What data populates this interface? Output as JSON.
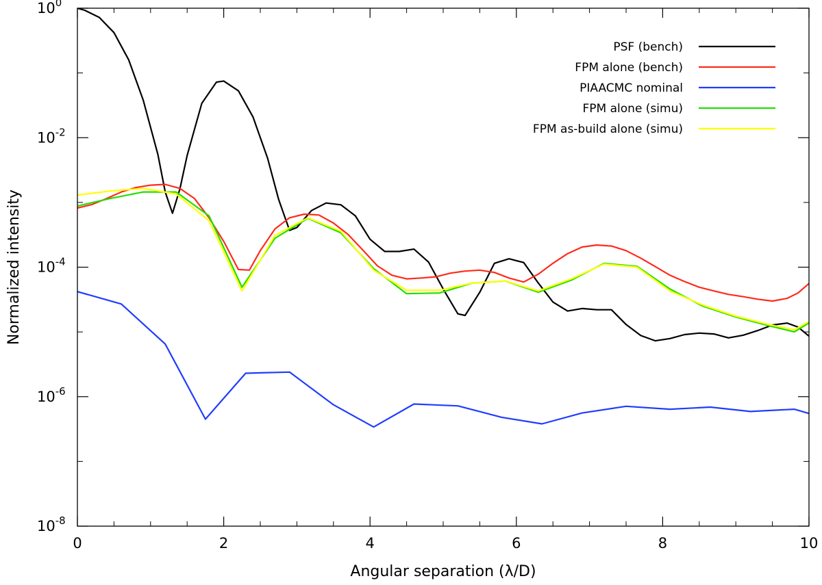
{
  "chart_data": {
    "type": "line",
    "xlabel": "Angular separation (λ/D)",
    "ylabel": "Normalized intensity",
    "xlim": [
      0,
      10
    ],
    "ylim": [
      1e-08,
      1
    ],
    "yscale": "log",
    "grid": false,
    "legend_position": "top-right",
    "x_ticks": [
      "0",
      "2",
      "4",
      "6",
      "8",
      "10"
    ],
    "y_ticks": [
      {
        "base": "10",
        "exp": "0",
        "value": 1
      },
      {
        "base": "10",
        "exp": "-2",
        "value": 0.01
      },
      {
        "base": "10",
        "exp": "-4",
        "value": 0.0001
      },
      {
        "base": "10",
        "exp": "-6",
        "value": 1e-06
      },
      {
        "base": "10",
        "exp": "-8",
        "value": 1e-08
      }
    ],
    "series": [
      {
        "name": "PSF (bench)",
        "color": "#000000",
        "points": [
          [
            0.0,
            1.0
          ],
          [
            0.1,
            0.93
          ],
          [
            0.3,
            0.72
          ],
          [
            0.5,
            0.42
          ],
          [
            0.7,
            0.16
          ],
          [
            0.9,
            0.038
          ],
          [
            1.1,
            0.0055
          ],
          [
            1.2,
            0.00145
          ],
          [
            1.3,
            0.00068
          ],
          [
            1.4,
            0.0016
          ],
          [
            1.5,
            0.0053
          ],
          [
            1.7,
            0.034
          ],
          [
            1.9,
            0.072
          ],
          [
            2.0,
            0.075
          ],
          [
            2.2,
            0.053
          ],
          [
            2.4,
            0.021
          ],
          [
            2.6,
            0.0048
          ],
          [
            2.75,
            0.00112
          ],
          [
            2.9,
            0.00037
          ],
          [
            3.0,
            0.00041
          ],
          [
            3.2,
            0.00075
          ],
          [
            3.4,
            0.00098
          ],
          [
            3.6,
            0.00092
          ],
          [
            3.8,
            0.00062
          ],
          [
            4.0,
            0.00027
          ],
          [
            4.2,
            0.000175
          ],
          [
            4.4,
            0.000175
          ],
          [
            4.6,
            0.00019
          ],
          [
            4.8,
            0.00012
          ],
          [
            5.0,
            4.6e-05
          ],
          [
            5.2,
            1.9e-05
          ],
          [
            5.3,
            1.8e-05
          ],
          [
            5.5,
            4.1e-05
          ],
          [
            5.7,
            0.000115
          ],
          [
            5.9,
            0.000135
          ],
          [
            6.1,
            0.000118
          ],
          [
            6.3,
            5.7e-05
          ],
          [
            6.5,
            2.9e-05
          ],
          [
            6.7,
            2.1e-05
          ],
          [
            6.9,
            2.3e-05
          ],
          [
            7.1,
            2.2e-05
          ],
          [
            7.3,
            2.2e-05
          ],
          [
            7.5,
            1.3e-05
          ],
          [
            7.7,
            8.8e-06
          ],
          [
            7.9,
            7.3e-06
          ],
          [
            8.1,
            7.9e-06
          ],
          [
            8.3,
            9.1e-06
          ],
          [
            8.5,
            9.6e-06
          ],
          [
            8.7,
            9.3e-06
          ],
          [
            8.9,
            8.1e-06
          ],
          [
            9.1,
            8.9e-06
          ],
          [
            9.3,
            1.05e-05
          ],
          [
            9.5,
            1.28e-05
          ],
          [
            9.7,
            1.37e-05
          ],
          [
            9.85,
            1.19e-05
          ],
          [
            10.0,
            8.6e-06
          ]
        ]
      },
      {
        "name": "FPM alone (bench)",
        "color": "#ff2a1a",
        "points": [
          [
            0.0,
            0.00082
          ],
          [
            0.2,
            0.00093
          ],
          [
            0.4,
            0.00115
          ],
          [
            0.6,
            0.00145
          ],
          [
            0.8,
            0.0017
          ],
          [
            1.0,
            0.00185
          ],
          [
            1.2,
            0.0019
          ],
          [
            1.4,
            0.00165
          ],
          [
            1.6,
            0.00115
          ],
          [
            1.8,
            0.00058
          ],
          [
            2.0,
            0.00025
          ],
          [
            2.2,
            9.2e-05
          ],
          [
            2.35,
            9e-05
          ],
          [
            2.5,
            0.00018
          ],
          [
            2.7,
            0.00039
          ],
          [
            2.9,
            0.00058
          ],
          [
            3.1,
            0.00066
          ],
          [
            3.3,
            0.00064
          ],
          [
            3.5,
            0.00048
          ],
          [
            3.7,
            0.00032
          ],
          [
            3.9,
            0.000185
          ],
          [
            4.1,
            0.000105
          ],
          [
            4.3,
            7.5e-05
          ],
          [
            4.5,
            6.6e-05
          ],
          [
            4.7,
            6.8e-05
          ],
          [
            4.9,
            7.1e-05
          ],
          [
            5.1,
            8.1e-05
          ],
          [
            5.3,
            8.7e-05
          ],
          [
            5.5,
            9e-05
          ],
          [
            5.7,
            8.3e-05
          ],
          [
            5.9,
            6.8e-05
          ],
          [
            6.1,
            5.9e-05
          ],
          [
            6.3,
            7.8e-05
          ],
          [
            6.5,
            0.000115
          ],
          [
            6.7,
            0.000162
          ],
          [
            6.9,
            0.000205
          ],
          [
            7.1,
            0.00022
          ],
          [
            7.3,
            0.000212
          ],
          [
            7.5,
            0.00018
          ],
          [
            7.7,
            0.000138
          ],
          [
            7.9,
            0.000102
          ],
          [
            8.1,
            7.5e-05
          ],
          [
            8.3,
            6e-05
          ],
          [
            8.5,
            4.9e-05
          ],
          [
            8.7,
            4.3e-05
          ],
          [
            8.9,
            3.8e-05
          ],
          [
            9.1,
            3.5e-05
          ],
          [
            9.3,
            3.2e-05
          ],
          [
            9.5,
            3e-05
          ],
          [
            9.7,
            3.3e-05
          ],
          [
            9.85,
            4e-05
          ],
          [
            10.0,
            5.6e-05
          ]
        ]
      },
      {
        "name": "PIAACMC nominal",
        "color": "#1f3cff",
        "points": [
          [
            0.0,
            4.2e-05
          ],
          [
            0.6,
            2.7e-05
          ],
          [
            1.2,
            6.5e-06
          ],
          [
            1.75,
            4.5e-07
          ],
          [
            2.3,
            2.3e-06
          ],
          [
            2.9,
            2.4e-06
          ],
          [
            3.5,
            7.5e-07
          ],
          [
            4.05,
            3.4e-07
          ],
          [
            4.6,
            7.7e-07
          ],
          [
            5.2,
            7.2e-07
          ],
          [
            5.8,
            4.8e-07
          ],
          [
            6.35,
            3.8e-07
          ],
          [
            6.9,
            5.6e-07
          ],
          [
            7.5,
            7.1e-07
          ],
          [
            8.1,
            6.4e-07
          ],
          [
            8.65,
            6.9e-07
          ],
          [
            9.2,
            5.9e-07
          ],
          [
            9.8,
            6.4e-07
          ],
          [
            10.0,
            5.5e-07
          ]
        ]
      },
      {
        "name": "FPM alone (simu)",
        "color": "#22dd00",
        "points": [
          [
            0.0,
            0.00088
          ],
          [
            0.45,
            0.00115
          ],
          [
            0.9,
            0.00145
          ],
          [
            1.35,
            0.00145
          ],
          [
            1.8,
            0.00062
          ],
          [
            2.25,
            4.9e-05
          ],
          [
            2.7,
            0.00028
          ],
          [
            3.15,
            0.00057
          ],
          [
            3.6,
            0.00034
          ],
          [
            4.05,
            9.5e-05
          ],
          [
            4.5,
            3.9e-05
          ],
          [
            4.95,
            4e-05
          ],
          [
            5.4,
            5.7e-05
          ],
          [
            5.85,
            6.1e-05
          ],
          [
            6.3,
            4.1e-05
          ],
          [
            6.75,
            6.3e-05
          ],
          [
            7.2,
            0.000115
          ],
          [
            7.65,
            0.000103
          ],
          [
            8.1,
            4.6e-05
          ],
          [
            8.55,
            2.5e-05
          ],
          [
            9.0,
            1.7e-05
          ],
          [
            9.45,
            1.25e-05
          ],
          [
            9.8,
            1e-05
          ],
          [
            10.0,
            1.38e-05
          ]
        ]
      },
      {
        "name": "FPM as-build alone (simu)",
        "color": "#ffff00",
        "points": [
          [
            0.0,
            0.0013
          ],
          [
            0.45,
            0.0015
          ],
          [
            0.9,
            0.00165
          ],
          [
            1.35,
            0.00135
          ],
          [
            1.8,
            0.00052
          ],
          [
            2.25,
            4.3e-05
          ],
          [
            2.7,
            0.00031
          ],
          [
            3.15,
            0.00058
          ],
          [
            3.6,
            0.00036
          ],
          [
            4.05,
            9e-05
          ],
          [
            4.5,
            4.4e-05
          ],
          [
            4.95,
            4.4e-05
          ],
          [
            5.4,
            5.7e-05
          ],
          [
            5.85,
            6.1e-05
          ],
          [
            6.3,
            4.3e-05
          ],
          [
            6.75,
            6.6e-05
          ],
          [
            7.2,
            0.000112
          ],
          [
            7.65,
            0.0001
          ],
          [
            8.1,
            4.3e-05
          ],
          [
            8.55,
            2.6e-05
          ],
          [
            9.0,
            1.75e-05
          ],
          [
            9.45,
            1.3e-05
          ],
          [
            9.8,
            1.08e-05
          ],
          [
            10.0,
            1.45e-05
          ]
        ]
      }
    ]
  }
}
